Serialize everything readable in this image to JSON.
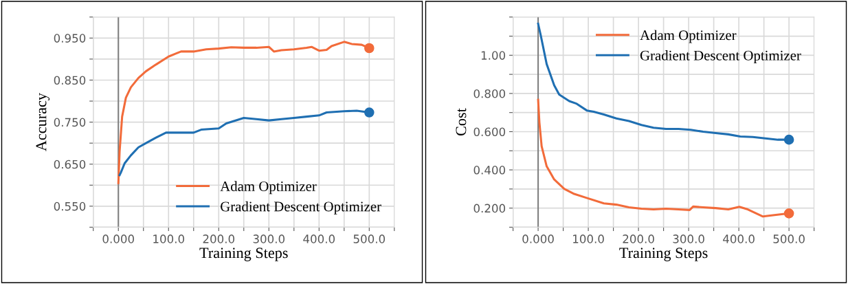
{
  "chart_data": [
    {
      "type": "line",
      "xlabel": "Training Steps",
      "ylabel": "Accuracy",
      "xlim": [
        -50,
        550
      ],
      "ylim": [
        0.5,
        1.0
      ],
      "xticks": [
        {
          "value": -50,
          "label": null
        },
        {
          "value": 0,
          "label": "0.000"
        },
        {
          "value": 50,
          "label": null
        },
        {
          "value": 100,
          "label": "100.0"
        },
        {
          "value": 150,
          "label": null
        },
        {
          "value": 200,
          "label": "200.0"
        },
        {
          "value": 250,
          "label": null
        },
        {
          "value": 300,
          "label": "300.0"
        },
        {
          "value": 350,
          "label": null
        },
        {
          "value": 400,
          "label": "400.0"
        },
        {
          "value": 450,
          "label": null
        },
        {
          "value": 500,
          "label": "500.0"
        },
        {
          "value": 550,
          "label": null
        }
      ],
      "yticks": [
        {
          "value": 0.5,
          "label": null
        },
        {
          "value": 0.55,
          "label": "0.550"
        },
        {
          "value": 0.6,
          "label": null
        },
        {
          "value": 0.65,
          "label": "0.650"
        },
        {
          "value": 0.7,
          "label": null
        },
        {
          "value": 0.75,
          "label": "0.750"
        },
        {
          "value": 0.8,
          "label": null
        },
        {
          "value": 0.85,
          "label": "0.850"
        },
        {
          "value": 0.9,
          "label": null
        },
        {
          "value": 0.95,
          "label": "0.950"
        },
        {
          "value": 1.0,
          "label": null
        }
      ],
      "grid": true,
      "legend": "bottom right",
      "ref_lines": [
        {
          "axis": "x",
          "value": 0,
          "color": "#808080"
        }
      ],
      "series": [
        {
          "name": "Adam Optimizer",
          "color": "#f26b3a",
          "x": [
            0,
            2.5,
            7.5,
            15,
            25,
            40,
            55,
            75,
            100,
            125,
            150,
            175,
            200,
            225,
            250,
            275,
            300,
            310,
            325,
            350,
            375,
            385,
            400,
            415,
            425,
            450,
            465,
            485,
            500
          ],
          "values": [
            0.605,
            0.681,
            0.763,
            0.808,
            0.833,
            0.855,
            0.871,
            0.887,
            0.906,
            0.918,
            0.918,
            0.923,
            0.925,
            0.928,
            0.927,
            0.927,
            0.929,
            0.918,
            0.921,
            0.923,
            0.927,
            0.929,
            0.92,
            0.922,
            0.931,
            0.941,
            0.936,
            0.934,
            0.926
          ]
        },
        {
          "name": "Gradient Descent Optimizer",
          "color": "#1f6fb2",
          "x": [
            2.5,
            5,
            12.5,
            25,
            40,
            55,
            75,
            95,
            125,
            150,
            165,
            200,
            215,
            250,
            275,
            300,
            325,
            350,
            375,
            400,
            415,
            450,
            475,
            500
          ],
          "values": [
            0.624,
            0.63,
            0.652,
            0.671,
            0.69,
            0.7,
            0.713,
            0.725,
            0.725,
            0.725,
            0.732,
            0.735,
            0.747,
            0.76,
            0.757,
            0.754,
            0.757,
            0.76,
            0.763,
            0.766,
            0.773,
            0.776,
            0.777,
            0.773
          ]
        },
        {
          "type": "scatter",
          "color": "#f26b3a",
          "x": [
            500
          ],
          "values": [
            0.926
          ]
        },
        {
          "type": "scatter",
          "color": "#1f6fb2",
          "x": [
            500
          ],
          "values": [
            0.773
          ]
        }
      ]
    },
    {
      "type": "line",
      "xlabel": "Training Steps",
      "ylabel": "Cost",
      "xlim": [
        -50,
        550
      ],
      "ylim": [
        0.1,
        1.2
      ],
      "xticks": [
        {
          "value": -50,
          "label": null
        },
        {
          "value": 0,
          "label": "0.000"
        },
        {
          "value": 50,
          "label": null
        },
        {
          "value": 100,
          "label": "100.0"
        },
        {
          "value": 150,
          "label": null
        },
        {
          "value": 200,
          "label": "200.0"
        },
        {
          "value": 250,
          "label": null
        },
        {
          "value": 300,
          "label": "300.0"
        },
        {
          "value": 350,
          "label": null
        },
        {
          "value": 400,
          "label": "400.0"
        },
        {
          "value": 450,
          "label": null
        },
        {
          "value": 500,
          "label": "500.0"
        },
        {
          "value": 550,
          "label": null
        }
      ],
      "yticks": [
        {
          "value": 0.1,
          "label": null
        },
        {
          "value": 0.2,
          "label": "0.200"
        },
        {
          "value": 0.3,
          "label": null
        },
        {
          "value": 0.4,
          "label": "0.400"
        },
        {
          "value": 0.5,
          "label": null
        },
        {
          "value": 0.6,
          "label": "0.600"
        },
        {
          "value": 0.7,
          "label": null
        },
        {
          "value": 0.8,
          "label": "0.800"
        },
        {
          "value": 0.9,
          "label": null
        },
        {
          "value": 1.0,
          "label": "1.00"
        },
        {
          "value": 1.1,
          "label": null
        },
        {
          "value": 1.2,
          "label": null
        }
      ],
      "grid": true,
      "legend": "top right",
      "ref_lines": [
        {
          "axis": "x",
          "value": 0,
          "color": "#808080"
        }
      ],
      "series": [
        {
          "name": "Adam Optimizer",
          "color": "#f26b3a",
          "x": [
            0,
            2.5,
            7,
            17,
            32,
            52,
            72,
            97,
            131,
            156,
            181,
            206,
            230,
            255,
            280,
            302,
            309,
            329,
            354,
            379,
            401,
            418,
            448,
            468,
            498
          ],
          "values": [
            0.767,
            0.649,
            0.524,
            0.419,
            0.35,
            0.301,
            0.274,
            0.253,
            0.225,
            0.218,
            0.204,
            0.197,
            0.193,
            0.197,
            0.193,
            0.19,
            0.208,
            0.204,
            0.2,
            0.193,
            0.207,
            0.193,
            0.156,
            0.163,
            0.172
          ]
        },
        {
          "name": "Gradient Descent Optimizer",
          "color": "#1f6fb2",
          "x": [
            0,
            5,
            17,
            32,
            42,
            62,
            77,
            97,
            111,
            131,
            156,
            181,
            206,
            230,
            255,
            280,
            304,
            329,
            354,
            379,
            403,
            428,
            453,
            478,
            498
          ],
          "values": [
            1.165,
            1.107,
            0.954,
            0.843,
            0.794,
            0.76,
            0.746,
            0.711,
            0.704,
            0.69,
            0.669,
            0.656,
            0.635,
            0.621,
            0.614,
            0.614,
            0.61,
            0.6,
            0.593,
            0.586,
            0.575,
            0.572,
            0.565,
            0.558,
            0.558
          ]
        },
        {
          "type": "scatter",
          "color": "#f26b3a",
          "x": [
            500
          ],
          "values": [
            0.172
          ]
        },
        {
          "type": "scatter",
          "color": "#1f6fb2",
          "x": [
            500
          ],
          "values": [
            0.558
          ]
        }
      ]
    }
  ]
}
